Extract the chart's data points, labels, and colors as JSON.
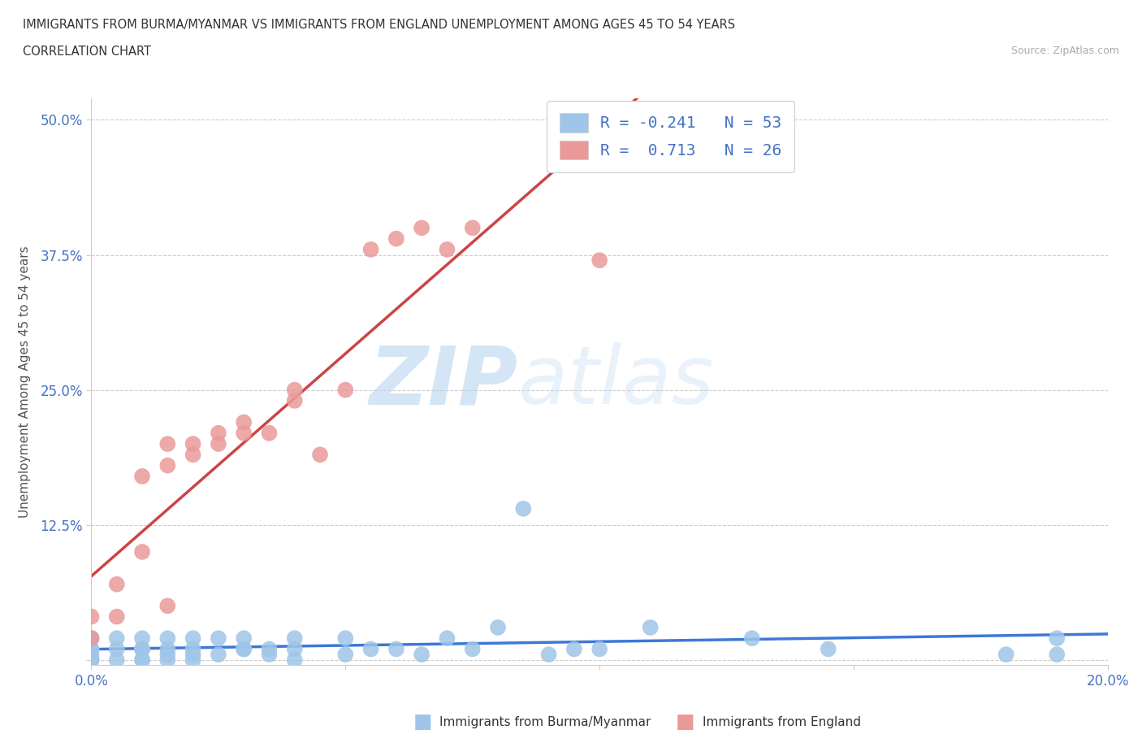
{
  "title_line1": "IMMIGRANTS FROM BURMA/MYANMAR VS IMMIGRANTS FROM ENGLAND UNEMPLOYMENT AMONG AGES 45 TO 54 YEARS",
  "title_line2": "CORRELATION CHART",
  "source": "Source: ZipAtlas.com",
  "ylabel": "Unemployment Among Ages 45 to 54 years",
  "xlim": [
    0.0,
    0.2
  ],
  "ylim": [
    -0.005,
    0.52
  ],
  "color_burma": "#9fc5e8",
  "color_england": "#ea9999",
  "trendline_color_burma": "#3c78d8",
  "trendline_color_england": "#cc4444",
  "R_burma": -0.241,
  "N_burma": 53,
  "R_england": 0.713,
  "N_england": 26,
  "watermark_zip": "ZIP",
  "watermark_atlas": "atlas",
  "legend_label_burma": "Immigrants from Burma/Myanmar",
  "legend_label_england": "Immigrants from England",
  "burma_x": [
    0.0,
    0.0,
    0.0,
    0.0,
    0.0,
    0.0,
    0.0,
    0.0,
    0.005,
    0.005,
    0.005,
    0.01,
    0.01,
    0.01,
    0.01,
    0.01,
    0.01,
    0.015,
    0.015,
    0.015,
    0.015,
    0.02,
    0.02,
    0.02,
    0.02,
    0.025,
    0.025,
    0.03,
    0.03,
    0.03,
    0.035,
    0.035,
    0.04,
    0.04,
    0.04,
    0.05,
    0.05,
    0.055,
    0.06,
    0.065,
    0.07,
    0.075,
    0.08,
    0.085,
    0.09,
    0.095,
    0.1,
    0.11,
    0.13,
    0.145,
    0.18,
    0.19,
    0.19
  ],
  "burma_y": [
    0.0,
    0.0,
    0.0,
    0.005,
    0.01,
    0.01,
    0.02,
    0.02,
    0.0,
    0.01,
    0.02,
    0.0,
    0.0,
    0.01,
    0.01,
    0.01,
    0.02,
    0.0,
    0.005,
    0.01,
    0.02,
    0.0,
    0.005,
    0.01,
    0.02,
    0.005,
    0.02,
    0.01,
    0.01,
    0.02,
    0.005,
    0.01,
    0.0,
    0.01,
    0.02,
    0.005,
    0.02,
    0.01,
    0.01,
    0.005,
    0.02,
    0.01,
    0.03,
    0.14,
    0.005,
    0.01,
    0.01,
    0.03,
    0.02,
    0.01,
    0.005,
    0.02,
    0.005
  ],
  "england_x": [
    0.0,
    0.0,
    0.005,
    0.005,
    0.01,
    0.01,
    0.015,
    0.015,
    0.015,
    0.02,
    0.02,
    0.025,
    0.025,
    0.03,
    0.03,
    0.035,
    0.04,
    0.04,
    0.045,
    0.05,
    0.055,
    0.06,
    0.065,
    0.07,
    0.075,
    0.1
  ],
  "england_y": [
    0.02,
    0.04,
    0.04,
    0.07,
    0.1,
    0.17,
    0.05,
    0.18,
    0.2,
    0.19,
    0.2,
    0.2,
    0.21,
    0.21,
    0.22,
    0.21,
    0.24,
    0.25,
    0.19,
    0.25,
    0.38,
    0.39,
    0.4,
    0.38,
    0.4,
    0.37
  ]
}
